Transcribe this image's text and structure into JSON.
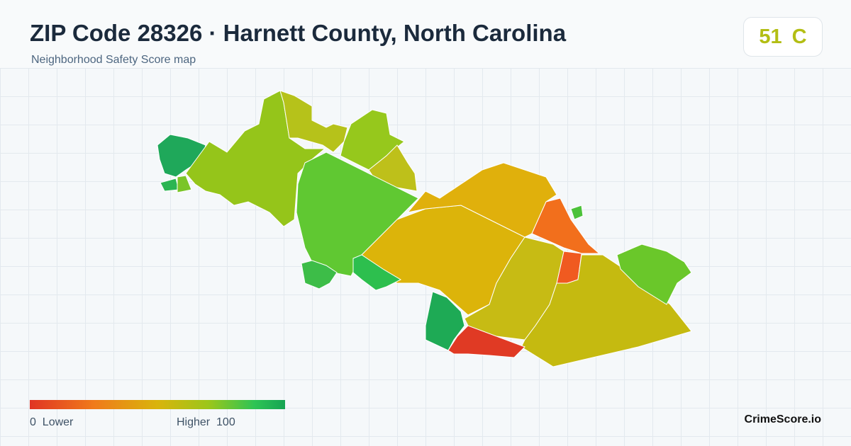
{
  "header": {
    "title": "ZIP Code 28326 · Harnett County, North Carolina",
    "subtitle": "Neighborhood Safety Score map"
  },
  "score": {
    "value": 51,
    "grade": "C"
  },
  "legend": {
    "min": 0,
    "min_label": "Lower",
    "max_label": "Higher",
    "max": 100
  },
  "brand": "CrimeScore.io"
}
